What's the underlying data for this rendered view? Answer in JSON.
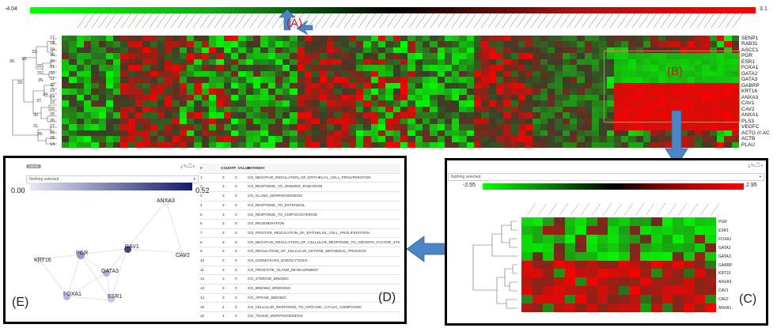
{
  "top": {
    "scale_min": "-4.04",
    "scale_max": "3.1",
    "label_a": "(A)",
    "label_b": "(B)"
  },
  "main_rows": [
    "SENP1",
    "RAB31",
    "ASCC1",
    "PGR",
    "ESR1",
    "FOXA1",
    "GATA2",
    "GATA3",
    "GABRP",
    "KRT16",
    "ANXA3",
    "CAV1",
    "CAV2",
    "ANXA1",
    "PLS3",
    "VEGFC",
    "ACTG /// AC",
    "ACTB",
    "PLAU"
  ],
  "tree_numbers": [
    "17",
    "18",
    "19",
    "16",
    "20",
    "21",
    "10",
    "11",
    "12",
    "23",
    "24",
    "13",
    "22",
    "25",
    "26",
    "27",
    "15",
    "28",
    "14"
  ],
  "tree_nodes": [
    "33",
    "33",
    "36",
    "32",
    "31",
    "35",
    "29",
    "34",
    "37",
    "30",
    "31",
    "28"
  ],
  "panel_e": {
    "badge": "GENE",
    "dropdown": "Nothing selected",
    "scale_min": "0.00",
    "scale_max": "0.52",
    "label": "(E)",
    "nodes": {
      "anxa3": "ANXA3",
      "cav1": "CAV1",
      "pgr": "PGR",
      "krt16": "KRT16",
      "cav2": "CAV2",
      "gata3": "GATA3",
      "foxa1": "FOXA1",
      "esr1": "ESR1"
    },
    "node_colors": {
      "anxa3": "#ffffff",
      "cav1": "#41427e",
      "pgr": "#9698d0",
      "krt16": "#ffffff",
      "cav2": "#ffffff",
      "gata3": "#aeb0e0",
      "foxa1": "#b3b5e2",
      "esr1": "#c2c4ea"
    }
  },
  "panel_d": {
    "label": "(D)",
    "headers": {
      "num": "#",
      "count": "COUNT",
      "pval": "P_VALUE",
      "pathway": "PATHWAY"
    },
    "rows": [
      {
        "n": "1",
        "count": "3",
        "p": "0",
        "pathway": "GO_NEGATIVE_REGULATION_OF_EPITHELIAL_CELL_PROLIFERATION"
      },
      {
        "n": "2",
        "count": "3",
        "p": "0",
        "pathway": "GO_RESPONSE_TO_IONIZING_RADIATION"
      },
      {
        "n": "3",
        "count": "3",
        "p": "0",
        "pathway": "GO_GLAND_MORPHOGENESIS"
      },
      {
        "n": "4",
        "count": "3",
        "p": "0",
        "pathway": "GO_RESPONSE_TO_ESTRADIOL"
      },
      {
        "n": "5",
        "count": "3",
        "p": "0",
        "pathway": "GO_RESPONSE_TO_CORTICOSTEROID"
      },
      {
        "n": "6",
        "count": "3",
        "p": "0",
        "pathway": "GO_REGENERATION"
      },
      {
        "n": "7",
        "count": "3",
        "p": "0",
        "pathway": "GO_POSITIVE_REGULATION_OF_EPITHELIAL_CELL_PROLIFERATION"
      },
      {
        "n": "8",
        "count": "3",
        "p": "0",
        "pathway": "GO_NEGATIVE_REGULATION_OF_CELLULAR_RESPONSE_TO_GROWTH_FACTOR_STIMULUS"
      },
      {
        "n": "9",
        "count": "3",
        "p": "0",
        "pathway": "GO_REGULATION_OF_CELLULAR_KETONE_METABOLIC_PROCESS"
      },
      {
        "n": "10",
        "count": "3",
        "p": "0",
        "pathway": "GO_CHEMOTAXIS_ENDOCYTOSIS"
      },
      {
        "n": "11",
        "count": "3",
        "p": "0",
        "pathway": "GO_PROSTATE_GLAND_DEVELOPMENT"
      },
      {
        "n": "12",
        "count": "3",
        "p": "0",
        "pathway": "GO_STEROID_BINDING"
      },
      {
        "n": "13",
        "count": "3",
        "p": "0",
        "pathway": "GO_BINDING_BRIDGING"
      },
      {
        "n": "14",
        "count": "3",
        "p": "0",
        "pathway": "GO_ATPASE_BINDING"
      },
      {
        "n": "15",
        "count": "4",
        "p": "0",
        "pathway": "GO_CELLULAR_RESPONSE_TO_ORGANIC_CYCLIC_COMPOUND"
      },
      {
        "n": "16",
        "count": "4",
        "p": "0",
        "pathway": "GO_TISSUE_MORPHOGENESIS"
      }
    ]
  },
  "panel_c": {
    "dropdown": "Nothing selected",
    "scale_min": "-2.55",
    "scale_max": "2.95",
    "label": "(C)",
    "rows": [
      "PGR",
      "ESR1",
      "FOXA1",
      "GATA2",
      "GATA3",
      "GABRP",
      "KRT16",
      "ANXA3",
      "CAV1",
      "CAV2",
      "ANXA1"
    ]
  },
  "colors": {
    "green": "#00c800",
    "red": "#e00000",
    "black": "#000000",
    "arrow": "#4a86c5",
    "node_blue": "#9698d0"
  }
}
